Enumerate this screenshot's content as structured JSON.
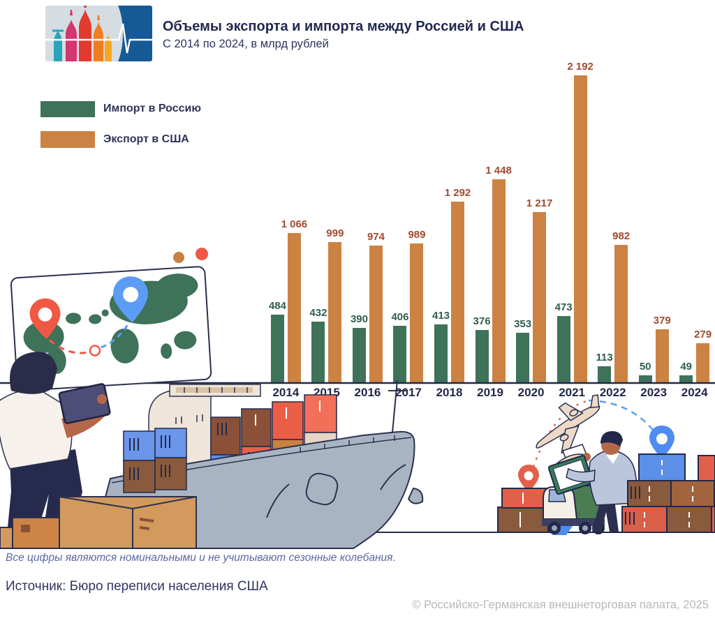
{
  "header": {
    "title": "Объемы экспорта и импорта между Россией и США",
    "subtitle": "С 2014 по 2024, в млрд рублей"
  },
  "legend": [
    {
      "label": "Импорт в Россию",
      "color": "#3e7259"
    },
    {
      "label": "Экспорт в США",
      "color": "#cc8242"
    }
  ],
  "chart_data": {
    "type": "bar",
    "title": "Объемы экспорта и импорта между Россией и США",
    "subtitle": "С 2014 по 2024, в млрд рублей",
    "unit": "млрд рублей",
    "categories": [
      "2014",
      "2015",
      "2016",
      "2017",
      "2018",
      "2019",
      "2020",
      "2021",
      "2022",
      "2023",
      "2024"
    ],
    "series": [
      {
        "name": "Импорт в Россию",
        "color": "#3e7259",
        "label_color": "#2f5e4b",
        "values": [
          484,
          432,
          390,
          406,
          413,
          376,
          353,
          473,
          113,
          50,
          49
        ],
        "value_labels": [
          "484",
          "432",
          "390",
          "406",
          "413",
          "376",
          "353",
          "473",
          "113",
          "50",
          "49"
        ]
      },
      {
        "name": "Экспорт в США",
        "color": "#cc8242",
        "label_color": "#a04a2e",
        "values": [
          1066,
          999,
          974,
          989,
          1292,
          1448,
          1217,
          2192,
          982,
          379,
          279
        ],
        "value_labels": [
          "1 066",
          "999",
          "974",
          "989",
          "1 292",
          "1 448",
          "1 217",
          "2 192",
          "982",
          "379",
          "279"
        ]
      }
    ],
    "ylim": [
      0,
      2192
    ],
    "grid": false,
    "legend_position": "top-left",
    "value_labels_shown": true
  },
  "footer": {
    "note": "Все цифры являются номинальными и не учитывают сезонные колебания.",
    "source": "Источник: Бюро переписи населения США",
    "copyright": "© Российско-Германская внешнеторговая палата, 2025"
  },
  "illustration": {
    "logo_icon": "kremlin-domes-pulse-logo",
    "left_scene": "man-with-tablet-looking-at-world-map",
    "map_icons": [
      "map-pin-red",
      "map-pin-blue",
      "dashed-route"
    ],
    "center_scene": "cargo-ship-with-containers-and-boxes",
    "right_scene": "truck-airplane-inspectors-containers"
  }
}
